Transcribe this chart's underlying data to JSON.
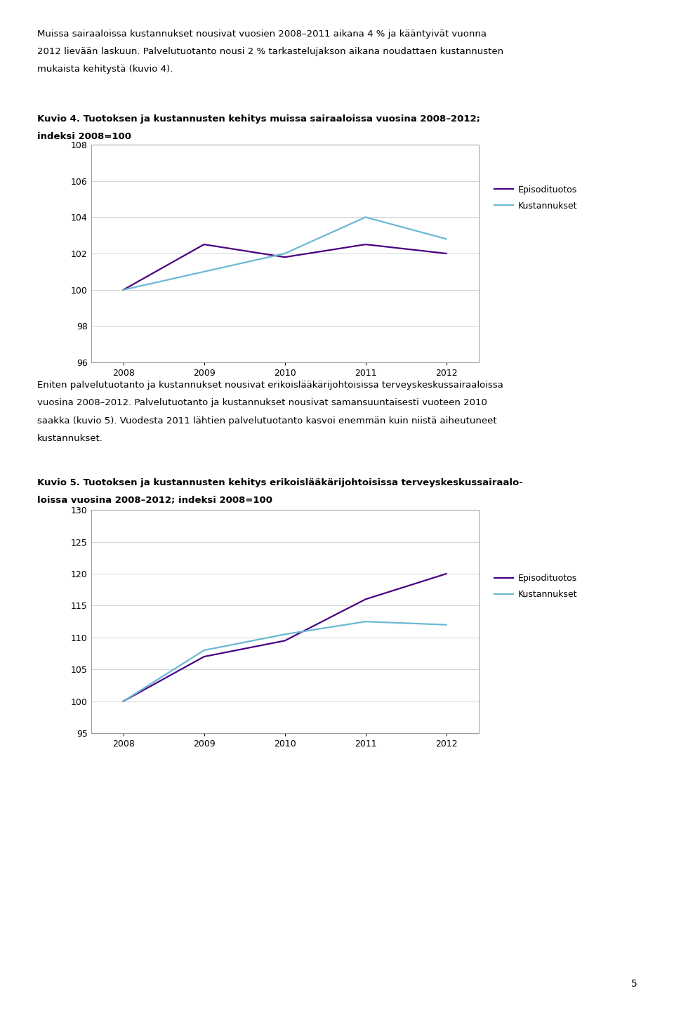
{
  "page_text_top": [
    "Muissa sairaaloissa kustannukset nousivat vuosien 2008–2011 aikana 4 % ja kääntyivät vuonna 2012 lievään laskuun. Palvelutuotanto nousi 2 % tarkastelujakson aikana noudattaen kustannusten mukaista kehitystä (kuvio 4).",
    "",
    "",
    "Kuvio 4. Tuotoksen ja kustannusten kehitys muissa sairaaloissa vuosina 2008–2012;",
    "indeksi 2008=100"
  ],
  "fig4_title_line1": "Kuvio 4. Tuotoksen ja kustannusten kehitys muissa sairaaloissa vuosina 2008–2012;",
  "fig4_title_line2": "indeksi 2008=100",
  "fig4_years": [
    2008,
    2009,
    2010,
    2011,
    2012
  ],
  "fig4_episodi": [
    100,
    102.5,
    101.8,
    102.5,
    102.0
  ],
  "fig4_kustannukset": [
    100,
    101.0,
    102.0,
    104.0,
    102.8
  ],
  "fig4_ylim": [
    96,
    108
  ],
  "fig4_yticks": [
    96,
    98,
    100,
    102,
    104,
    106,
    108
  ],
  "middle_text_lines": [
    "Eniten palvelutuotanto ja kustannukset nousivat erikoislääkärijohtoisissa terveyskeskussairaaloissa",
    "vuosina 2008–2012. Palvelutuotanto ja kustannukset nousivat samansuuntaisesti vuoteen 2010",
    "saakka (kuvio 5). Vuodesta 2011 lähtien palvelutuotanto kasvoi enemmän kuin niistä aiheutuneet",
    "kustannukset."
  ],
  "fig5_title_line1": "Kuvio 5. Tuotoksen ja kustannusten kehitys erikoislääkärijohtoisissa terveyskeskussairaalo-",
  "fig5_title_line2": "loissa vuosina 2008–2012; indeksi 2008=100",
  "fig5_years": [
    2008,
    2009,
    2010,
    2011,
    2012
  ],
  "fig5_episodi": [
    100,
    107.0,
    109.5,
    116.0,
    120.0
  ],
  "fig5_kustannukset": [
    100,
    108.0,
    110.5,
    112.5,
    112.0
  ],
  "fig5_ylim": [
    95,
    130
  ],
  "fig5_yticks": [
    95,
    100,
    105,
    110,
    115,
    120,
    125,
    130
  ],
  "episodi_color": "#4B0082",
  "kustannukset_color": "#6BB8D4",
  "legend_episodi": "Episodituotos",
  "legend_kustannukset": "Kustannukset",
  "page_number": "5",
  "font_size_body": 9.5,
  "font_size_title": 9.5,
  "font_size_axis": 9.0
}
